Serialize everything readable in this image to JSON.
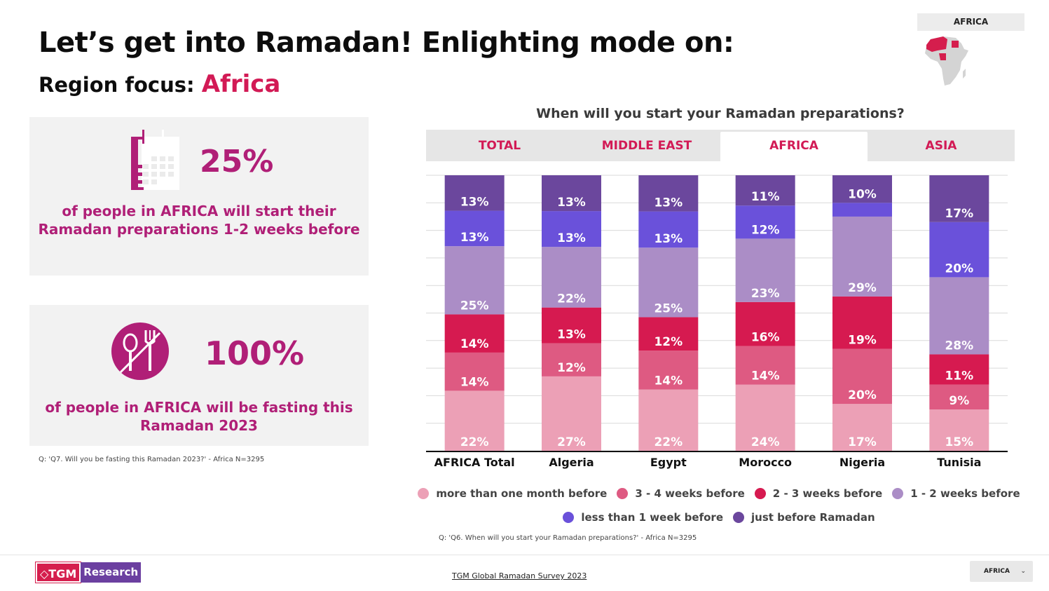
{
  "header": {
    "title": "Let’s get into Ramadan! Enlighting mode on:",
    "subtitle_prefix": "Region focus:",
    "subtitle_region": "Africa",
    "region_badge": "AFRICA",
    "map_icon": "africa-map-icon"
  },
  "cards": [
    {
      "icon": "calendar-icon",
      "value": "25%",
      "text_line1": "of people in AFRICA will start their",
      "text_line2": "Ramadan preparations 1-2 weeks before"
    },
    {
      "icon": "no-food-icon",
      "value": "100%",
      "text_line1": "of people in AFRICA will be fasting this",
      "text_line2": "Ramadan 2023"
    }
  ],
  "cards_note": "Q: 'Q7. Will you be fasting this Ramadan 2023?' - Africa N=3295",
  "tabs": [
    {
      "label": "TOTAL",
      "active": false
    },
    {
      "label": "MIDDLE EAST",
      "active": false
    },
    {
      "label": "AFRICA",
      "active": true
    },
    {
      "label": "ASIA",
      "active": false
    }
  ],
  "chart_data": {
    "type": "bar",
    "stacked": true,
    "title": "When will you start your Ramadan preparations?",
    "xlabel": "",
    "ylabel": "",
    "ylim": [
      0,
      100
    ],
    "grid": true,
    "legend_position": "bottom",
    "categories": [
      "AFRICA Total",
      "Algeria",
      "Egypt",
      "Morocco",
      "Nigeria",
      "Tunisia"
    ],
    "series": [
      {
        "name": "more than one month before",
        "color": "#eca0b6",
        "values": [
          22,
          27,
          22,
          24,
          17,
          15
        ],
        "labels": [
          "22%",
          "27%",
          "22%",
          "24%",
          "17%",
          "15%"
        ]
      },
      {
        "name": "3 - 4 weeks before",
        "color": "#de5a82",
        "values": [
          14,
          12,
          14,
          14,
          20,
          9
        ],
        "labels": [
          "14%",
          "12%",
          "14%",
          "14%",
          "20%",
          "9%"
        ]
      },
      {
        "name": "2 - 3 weeks before",
        "color": "#d61a50",
        "values": [
          14,
          13,
          12,
          16,
          19,
          11
        ],
        "labels": [
          "14%",
          "13%",
          "12%",
          "16%",
          "19%",
          "11%"
        ]
      },
      {
        "name": "1 - 2 weeks before",
        "color": "#ab8dc6",
        "values": [
          25,
          22,
          25,
          23,
          29,
          28
        ],
        "labels": [
          "25%",
          "22%",
          "25%",
          "23%",
          "29%",
          "28%"
        ]
      },
      {
        "name": "less than 1 week before",
        "color": "#6a51da",
        "values": [
          13,
          13,
          13,
          12,
          5,
          20
        ],
        "labels": [
          "13%",
          "13%",
          "13%",
          "12%",
          "",
          "20%"
        ]
      },
      {
        "name": "just before Ramadan",
        "color": "#6b479d",
        "values": [
          13,
          13,
          13,
          11,
          10,
          17
        ],
        "labels": [
          "13%",
          "13%",
          "13%",
          "11%",
          "10%",
          "17%"
        ]
      }
    ]
  },
  "chart_note": "Q: 'Q6. When will you start your Ramadan preparations?' - Africa N=3295",
  "footer": {
    "logo_part1": "◇TGM",
    "logo_part2": "Research",
    "link": "TGM Global Ramadan Survey 2023",
    "dropdown_value": "AFRICA",
    "dropdown_icon": "chevron-down-icon"
  },
  "colors": {
    "accent": "#d21a55",
    "card_text": "#b01f77"
  }
}
